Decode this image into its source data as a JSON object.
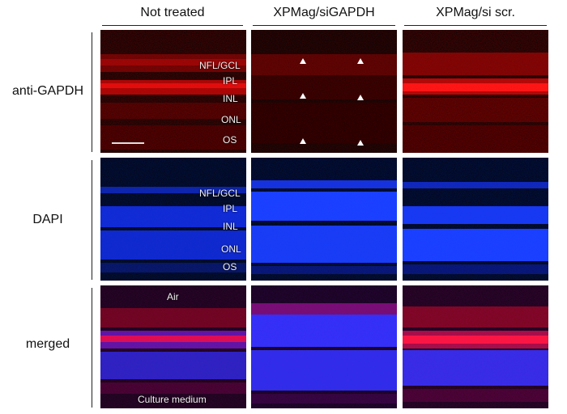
{
  "columns": [
    "Not treated",
    "XPMag/siGAPDH",
    "XPMag/si scr."
  ],
  "rows": [
    "anti-GAPDH",
    "DAPI",
    "merged"
  ],
  "layer_labels": {
    "nfl_gcl": "NFL/GCL",
    "ipl": "IPL",
    "inl": "INL",
    "onl": "ONL",
    "os": "OS"
  },
  "merged_labels": {
    "top": "Air",
    "bottom": "Culture medium"
  },
  "colors": {
    "gapdh_red": "#d01010",
    "dapi_blue": "#1530ff",
    "background": "#050505",
    "annotation_white": "#ffffff"
  },
  "icons": [
    "arrowhead-icon"
  ]
}
